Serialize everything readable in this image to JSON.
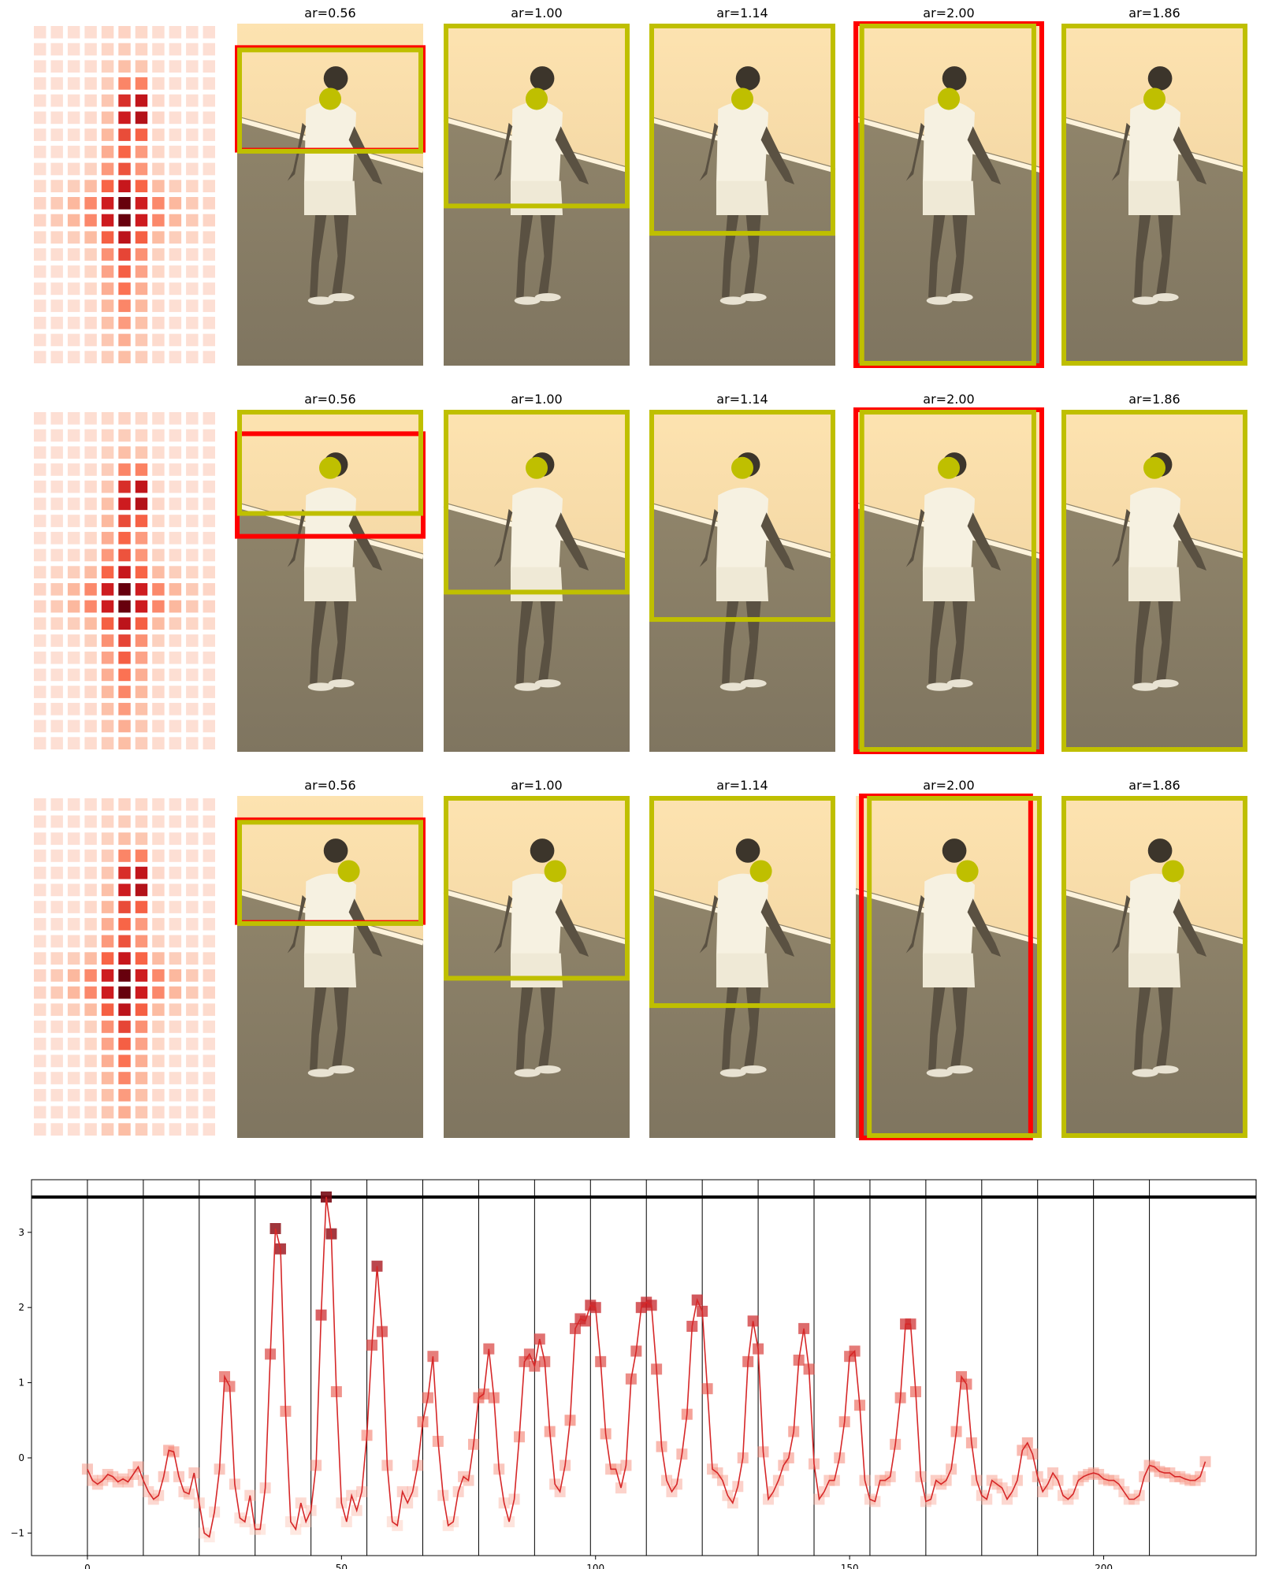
{
  "figure": {
    "colors": {
      "box": "#bfbf00",
      "alt_box": "#ff0000",
      "dot": "#bfbf00",
      "line": "#d62728",
      "ref_line": "#000000",
      "court_light": "#fde3b0",
      "court_dark": "#8c8168"
    },
    "rows": [
      {
        "panels": [
          {
            "label": "ar=0.56",
            "ar": 0.56,
            "dot": [
              0.5,
              0.22
            ],
            "box": [
              0.0,
              0.07,
              1.0,
              0.38
            ],
            "alt": [
              0.0,
              0.07,
              1.0,
              0.37
            ]
          },
          {
            "label": "ar=1.00",
            "ar": 1.0,
            "dot": [
              0.5,
              0.22
            ],
            "box": [
              0.0,
              0.0,
              1.0,
              0.54
            ],
            "alt": null
          },
          {
            "label": "ar=1.14",
            "ar": 1.14,
            "dot": [
              0.5,
              0.22
            ],
            "box": [
              0.0,
              0.0,
              1.0,
              0.62
            ],
            "alt": null
          },
          {
            "label": "ar=2.00",
            "ar": 2.0,
            "dot": [
              0.5,
              0.22
            ],
            "box": [
              0.02,
              0.0,
              0.97,
              1.0
            ],
            "alt": [
              0.0,
              0.0,
              1.0,
              1.0
            ]
          },
          {
            "label": "ar=1.86",
            "ar": 1.86,
            "dot": [
              0.5,
              0.22
            ],
            "box": [
              0.0,
              0.0,
              1.0,
              1.0
            ],
            "alt": null
          }
        ]
      },
      {
        "panels": [
          {
            "label": "ar=0.56",
            "ar": 0.56,
            "dot": [
              0.5,
              0.17
            ],
            "box": [
              0.0,
              0.0,
              1.0,
              0.31
            ],
            "alt": [
              0.0,
              0.07,
              1.0,
              0.37
            ]
          },
          {
            "label": "ar=1.00",
            "ar": 1.0,
            "dot": [
              0.5,
              0.17
            ],
            "box": [
              0.0,
              0.0,
              1.0,
              0.54
            ],
            "alt": null
          },
          {
            "label": "ar=1.14",
            "ar": 1.14,
            "dot": [
              0.5,
              0.17
            ],
            "box": [
              0.0,
              0.0,
              1.0,
              0.62
            ],
            "alt": null
          },
          {
            "label": "ar=2.00",
            "ar": 2.0,
            "dot": [
              0.5,
              0.17
            ],
            "box": [
              0.02,
              0.0,
              0.97,
              1.0
            ],
            "alt": [
              0.0,
              0.0,
              1.0,
              1.0
            ]
          },
          {
            "label": "ar=1.86",
            "ar": 1.86,
            "dot": [
              0.5,
              0.17
            ],
            "box": [
              0.0,
              0.0,
              1.0,
              1.0
            ],
            "alt": null
          }
        ]
      },
      {
        "panels": [
          {
            "label": "ar=0.56",
            "ar": 0.56,
            "dot": [
              0.6,
              0.22
            ],
            "box": [
              0.0,
              0.07,
              1.0,
              0.38
            ],
            "alt": [
              0.0,
              0.07,
              1.0,
              0.37
            ]
          },
          {
            "label": "ar=1.00",
            "ar": 1.0,
            "dot": [
              0.6,
              0.22
            ],
            "box": [
              0.0,
              0.0,
              1.0,
              0.54
            ],
            "alt": null
          },
          {
            "label": "ar=1.14",
            "ar": 1.14,
            "dot": [
              0.6,
              0.22
            ],
            "box": [
              0.0,
              0.0,
              1.0,
              0.62
            ],
            "alt": null
          },
          {
            "label": "ar=2.00",
            "ar": 2.0,
            "dot": [
              0.6,
              0.22
            ],
            "box": [
              0.06,
              0.0,
              1.0,
              1.0
            ],
            "alt": [
              0.03,
              0.0,
              0.94,
              1.0
            ]
          },
          {
            "label": "ar=1.86",
            "ar": 1.86,
            "dot": [
              0.6,
              0.22
            ],
            "box": [
              0.0,
              0.0,
              1.0,
              1.0
            ],
            "alt": null
          }
        ]
      }
    ]
  },
  "chart_data": {
    "type": "line",
    "x": [
      0,
      1,
      2,
      3,
      4,
      5,
      6,
      7,
      8,
      9,
      10,
      11,
      12,
      13,
      14,
      15,
      16,
      17,
      18,
      19,
      20,
      21,
      22,
      23,
      24,
      25,
      26,
      27,
      28,
      29,
      30,
      31,
      32,
      33,
      34,
      35,
      36,
      37,
      38,
      39,
      40,
      41,
      42,
      43,
      44,
      45,
      46,
      47,
      48,
      49,
      50,
      51,
      52,
      53,
      54,
      55,
      56,
      57,
      58,
      59,
      60,
      61,
      62,
      63,
      64,
      65,
      66,
      67,
      68,
      69,
      70,
      71,
      72,
      73,
      74,
      75,
      76,
      77,
      78,
      79,
      80,
      81,
      82,
      83,
      84,
      85,
      86,
      87,
      88,
      89,
      90,
      91,
      92,
      93,
      94,
      95,
      96,
      97,
      98,
      99,
      100,
      101,
      102,
      103,
      104,
      105,
      106,
      107,
      108,
      109,
      110,
      111,
      112,
      113,
      114,
      115,
      116,
      117,
      118,
      119,
      120,
      121,
      122,
      123,
      124,
      125,
      126,
      127,
      128,
      129,
      130,
      131,
      132,
      133,
      134,
      135,
      136,
      137,
      138,
      139,
      140,
      141,
      142,
      143,
      144,
      145,
      146,
      147,
      148,
      149,
      150,
      151,
      152,
      153,
      154,
      155,
      156,
      157,
      158,
      159,
      160,
      161,
      162,
      163,
      164,
      165,
      166,
      167,
      168,
      169,
      170,
      171,
      172,
      173,
      174,
      175,
      176,
      177,
      178,
      179,
      180,
      181,
      182,
      183,
      184,
      185,
      186,
      187,
      188,
      189,
      190,
      191,
      192,
      193,
      194,
      195,
      196,
      197,
      198,
      199,
      200,
      201,
      202,
      203,
      204,
      205,
      206,
      207,
      208,
      209,
      210,
      211,
      212,
      213,
      214,
      215,
      216,
      217,
      218,
      219,
      220
    ],
    "y": [
      -0.15,
      -0.3,
      -0.35,
      -0.3,
      -0.22,
      -0.25,
      -0.32,
      -0.28,
      -0.32,
      -0.22,
      -0.12,
      -0.3,
      -0.45,
      -0.55,
      -0.5,
      -0.25,
      0.1,
      0.08,
      -0.25,
      -0.45,
      -0.48,
      -0.2,
      -0.6,
      -1.0,
      -1.05,
      -0.72,
      -0.15,
      1.08,
      0.95,
      -0.35,
      -0.8,
      -0.85,
      -0.5,
      -0.95,
      -0.95,
      -0.4,
      1.38,
      3.05,
      2.78,
      0.62,
      -0.85,
      -0.95,
      -0.6,
      -0.85,
      -0.7,
      -0.1,
      1.9,
      3.47,
      2.98,
      0.88,
      -0.6,
      -0.85,
      -0.5,
      -0.7,
      -0.45,
      0.3,
      1.5,
      2.55,
      1.68,
      -0.1,
      -0.85,
      -0.9,
      -0.45,
      -0.6,
      -0.45,
      -0.1,
      0.48,
      0.8,
      1.35,
      0.22,
      -0.5,
      -0.9,
      -0.85,
      -0.45,
      -0.25,
      -0.3,
      0.18,
      0.8,
      0.85,
      1.45,
      0.8,
      -0.15,
      -0.6,
      -0.85,
      -0.55,
      0.28,
      1.28,
      1.38,
      1.22,
      1.58,
      1.28,
      0.35,
      -0.35,
      -0.45,
      -0.1,
      0.5,
      1.72,
      1.85,
      1.82,
      2.03,
      2.0,
      1.28,
      0.32,
      -0.15,
      -0.15,
      -0.4,
      -0.1,
      1.05,
      1.42,
      2.0,
      2.07,
      2.03,
      1.18,
      0.15,
      -0.3,
      -0.45,
      -0.35,
      0.05,
      0.58,
      1.75,
      2.1,
      1.95,
      0.92,
      -0.15,
      -0.2,
      -0.3,
      -0.5,
      -0.6,
      -0.38,
      0.0,
      1.28,
      1.82,
      1.45,
      0.08,
      -0.55,
      -0.45,
      -0.3,
      -0.1,
      0.0,
      0.35,
      1.3,
      1.72,
      1.18,
      -0.08,
      -0.55,
      -0.45,
      -0.3,
      -0.3,
      0.0,
      0.48,
      1.35,
      1.42,
      0.7,
      -0.3,
      -0.55,
      -0.58,
      -0.3,
      -0.3,
      -0.25,
      0.18,
      0.8,
      1.78,
      1.78,
      0.88,
      -0.25,
      -0.58,
      -0.55,
      -0.3,
      -0.35,
      -0.3,
      -0.15,
      0.35,
      1.08,
      0.98,
      0.2,
      -0.3,
      -0.5,
      -0.55,
      -0.3,
      -0.35,
      -0.4,
      -0.55,
      -0.45,
      -0.3,
      0.1,
      0.2,
      0.05,
      -0.25,
      -0.45,
      -0.35,
      -0.2,
      -0.3,
      -0.5,
      -0.55,
      -0.48,
      -0.3,
      -0.25,
      -0.22,
      -0.2,
      -0.22,
      -0.28,
      -0.3,
      -0.3,
      -0.35,
      -0.45,
      -0.55,
      -0.55,
      -0.5,
      -0.25,
      -0.1,
      -0.12,
      -0.18,
      -0.2,
      -0.2,
      -0.25,
      -0.25,
      -0.28,
      -0.3,
      -0.3,
      -0.25,
      -0.05
    ],
    "hline": 3.47,
    "vlines": [
      0,
      11,
      22,
      33,
      44,
      55,
      66,
      77,
      88,
      99,
      110,
      121,
      132,
      143,
      154,
      165,
      176,
      187,
      198,
      209
    ],
    "xlim": [
      -11,
      230
    ],
    "ylim": [
      -1.3,
      3.7
    ],
    "xticks": [
      0,
      50,
      100,
      150,
      200
    ],
    "yticks": [
      -1,
      0,
      1,
      2,
      3
    ],
    "xlabel": "",
    "ylabel": "",
    "title": "",
    "grid": false,
    "legend": "none"
  }
}
